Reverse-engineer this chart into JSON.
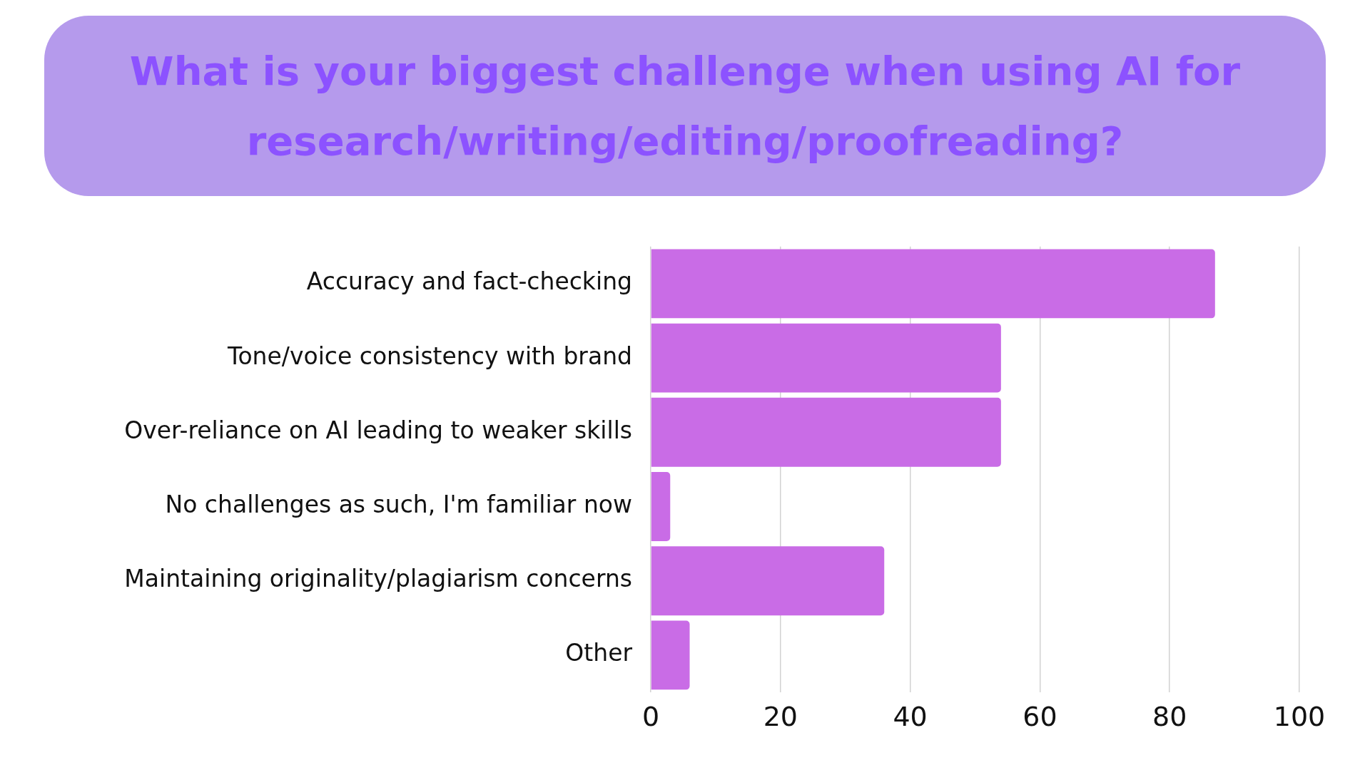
{
  "chart_data": {
    "type": "bar",
    "orientation": "horizontal",
    "title": "What is your biggest challenge when using AI for research/writing/editing/proofreading?",
    "categories": [
      "Accuracy and fact-checking",
      "Tone/voice consistency with brand",
      "Over-reliance on AI leading to weaker skills",
      "No challenges as such, I'm familiar now",
      "Maintaining originality/plagiarism concerns",
      "Other"
    ],
    "values": [
      87,
      54,
      54,
      3,
      36,
      6
    ],
    "color": "#c96ce6",
    "xlim": [
      0,
      100
    ],
    "xticks": [
      0,
      20,
      40,
      60,
      80,
      100
    ],
    "grid": "x"
  }
}
